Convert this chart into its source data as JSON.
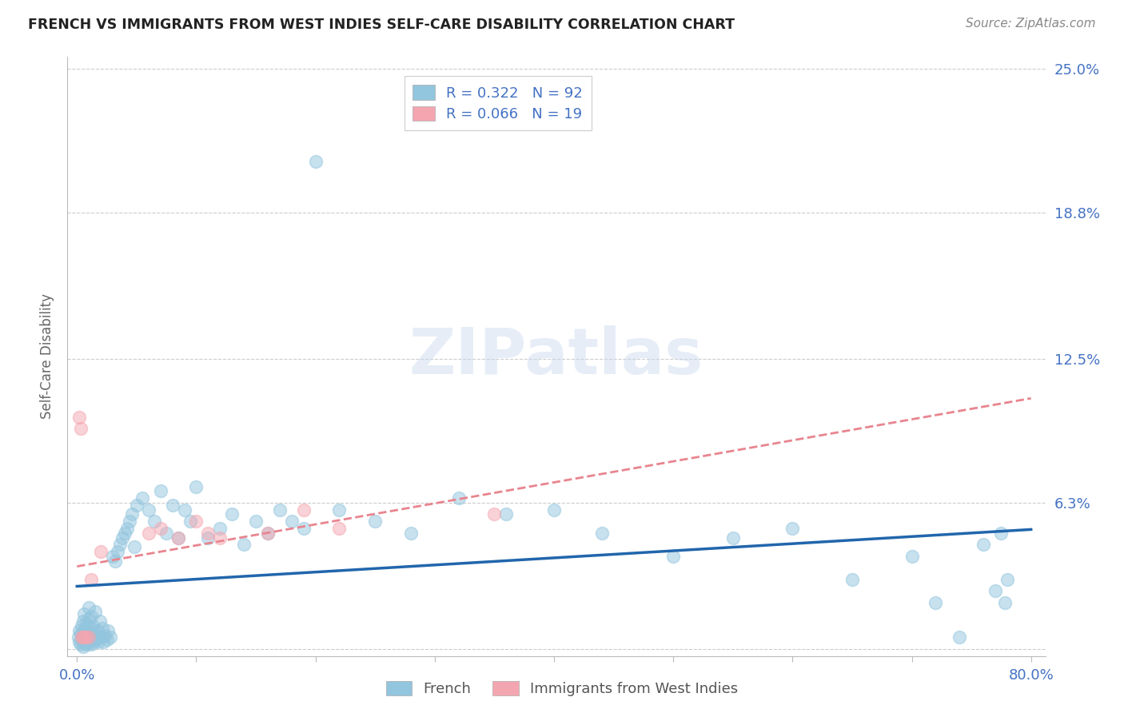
{
  "title": "FRENCH VS IMMIGRANTS FROM WEST INDIES SELF-CARE DISABILITY CORRELATION CHART",
  "source": "Source: ZipAtlas.com",
  "xlabel_french": "French",
  "xlabel_immigrants": "Immigrants from West Indies",
  "ylabel": "Self-Care Disability",
  "xlim": [
    0,
    0.8
  ],
  "ylim": [
    0,
    0.25
  ],
  "yticks": [
    0,
    0.063,
    0.125,
    0.188,
    0.25
  ],
  "ytick_labels": [
    "",
    "6.3%",
    "12.5%",
    "18.8%",
    "25.0%"
  ],
  "xtick_labels": [
    "0.0%",
    "",
    "",
    "",
    "",
    "",
    "",
    "",
    "80.0%"
  ],
  "french_R": 0.322,
  "french_N": 92,
  "immigrants_R": 0.066,
  "immigrants_N": 19,
  "blue_color": "#92c5de",
  "pink_color": "#f4a6b0",
  "blue_line_color": "#2166ac",
  "pink_line_color": "#e8858f",
  "axis_label_color": "#4472c4",
  "watermark": "ZIPatlas",
  "french_x": [
    0.001,
    0.002,
    0.002,
    0.003,
    0.003,
    0.004,
    0.004,
    0.005,
    0.005,
    0.005,
    0.006,
    0.006,
    0.006,
    0.007,
    0.007,
    0.008,
    0.008,
    0.009,
    0.009,
    0.01,
    0.01,
    0.01,
    0.011,
    0.011,
    0.012,
    0.012,
    0.013,
    0.013,
    0.014,
    0.015,
    0.015,
    0.016,
    0.017,
    0.018,
    0.019,
    0.02,
    0.021,
    0.022,
    0.023,
    0.025,
    0.026,
    0.028,
    0.03,
    0.032,
    0.034,
    0.036,
    0.038,
    0.04,
    0.042,
    0.044,
    0.046,
    0.048,
    0.05,
    0.055,
    0.06,
    0.065,
    0.07,
    0.075,
    0.08,
    0.085,
    0.09,
    0.095,
    0.1,
    0.11,
    0.12,
    0.13,
    0.14,
    0.15,
    0.16,
    0.17,
    0.18,
    0.19,
    0.2,
    0.22,
    0.25,
    0.28,
    0.32,
    0.36,
    0.4,
    0.44,
    0.5,
    0.55,
    0.6,
    0.65,
    0.7,
    0.72,
    0.74,
    0.76,
    0.77,
    0.775,
    0.778,
    0.78
  ],
  "french_y": [
    0.005,
    0.003,
    0.008,
    0.002,
    0.007,
    0.004,
    0.01,
    0.001,
    0.006,
    0.012,
    0.003,
    0.008,
    0.015,
    0.004,
    0.009,
    0.002,
    0.011,
    0.005,
    0.007,
    0.003,
    0.013,
    0.018,
    0.004,
    0.009,
    0.002,
    0.014,
    0.006,
    0.01,
    0.003,
    0.007,
    0.016,
    0.004,
    0.008,
    0.003,
    0.012,
    0.005,
    0.009,
    0.003,
    0.006,
    0.004,
    0.008,
    0.005,
    0.04,
    0.038,
    0.042,
    0.045,
    0.048,
    0.05,
    0.052,
    0.055,
    0.058,
    0.044,
    0.062,
    0.065,
    0.06,
    0.055,
    0.068,
    0.05,
    0.062,
    0.048,
    0.06,
    0.055,
    0.07,
    0.048,
    0.052,
    0.058,
    0.045,
    0.055,
    0.05,
    0.06,
    0.055,
    0.052,
    0.21,
    0.06,
    0.055,
    0.05,
    0.065,
    0.058,
    0.06,
    0.05,
    0.04,
    0.048,
    0.052,
    0.03,
    0.04,
    0.02,
    0.005,
    0.045,
    0.025,
    0.05,
    0.02,
    0.03
  ],
  "immigrants_x": [
    0.002,
    0.003,
    0.004,
    0.005,
    0.006,
    0.008,
    0.01,
    0.012,
    0.02,
    0.06,
    0.07,
    0.085,
    0.1,
    0.11,
    0.12,
    0.16,
    0.19,
    0.22,
    0.35
  ],
  "immigrants_y": [
    0.1,
    0.095,
    0.005,
    0.005,
    0.005,
    0.005,
    0.005,
    0.03,
    0.042,
    0.05,
    0.052,
    0.048,
    0.055,
    0.05,
    0.048,
    0.05,
    0.06,
    0.052,
    0.058
  ]
}
